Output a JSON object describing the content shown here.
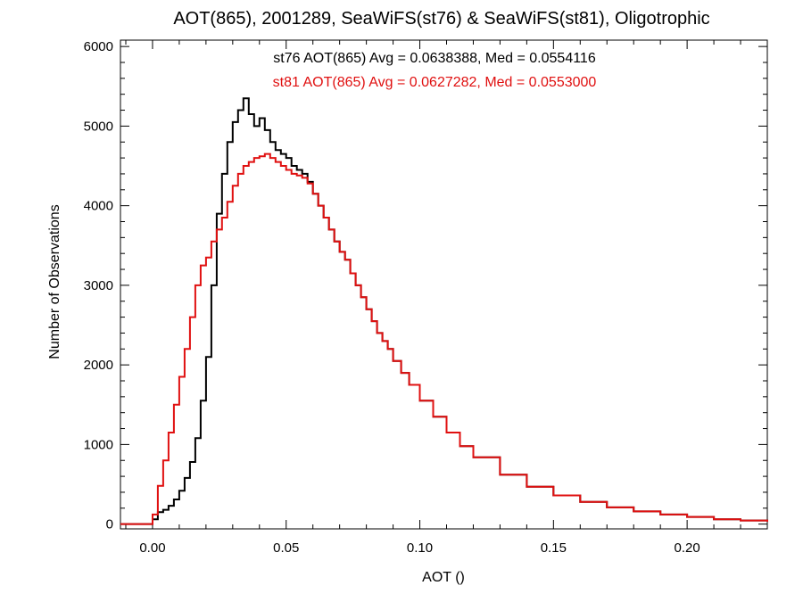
{
  "chart_data": {
    "type": "line",
    "title": "AOT(865), 2001289, SeaWiFS(st76) & SeaWiFS(st81), Oligotrophic",
    "xlabel": "AOT ()",
    "ylabel": "Number of Observations",
    "xlim": [
      -0.012,
      0.23
    ],
    "ylim": [
      -60,
      6080
    ],
    "x_ticks": [
      0.0,
      0.05,
      0.1,
      0.15,
      0.2
    ],
    "x_tick_labels": [
      "0.00",
      "0.05",
      "0.10",
      "0.15",
      "0.20"
    ],
    "y_ticks": [
      0,
      1000,
      2000,
      3000,
      4000,
      5000,
      6000
    ],
    "y_tick_labels": [
      "0",
      "1000",
      "2000",
      "3000",
      "4000",
      "5000",
      "6000"
    ],
    "x_minor_step": 0.01,
    "y_minor_step": 200,
    "grid": false,
    "legend_placement": "top-center",
    "series": [
      {
        "name": "st76",
        "legend": "st76 AOT(865) Avg = 0.0638388, Med = 0.0554116",
        "color": "#000000",
        "x": [
          -0.012,
          -0.003,
          0.0,
          0.002,
          0.004,
          0.006,
          0.008,
          0.01,
          0.012,
          0.014,
          0.016,
          0.018,
          0.02,
          0.022,
          0.024,
          0.026,
          0.028,
          0.03,
          0.032,
          0.034,
          0.036,
          0.038,
          0.04,
          0.042,
          0.044,
          0.046,
          0.048,
          0.05,
          0.052,
          0.054,
          0.056,
          0.058,
          0.06,
          0.062,
          0.064,
          0.066,
          0.068,
          0.07,
          0.072,
          0.074,
          0.076,
          0.078,
          0.08,
          0.082,
          0.084,
          0.086,
          0.088,
          0.09,
          0.093,
          0.096,
          0.1,
          0.105,
          0.11,
          0.115,
          0.12,
          0.13,
          0.14,
          0.15,
          0.16,
          0.17,
          0.18,
          0.19,
          0.2,
          0.21,
          0.22,
          0.23
        ],
        "y": [
          0,
          0,
          60,
          150,
          180,
          230,
          310,
          420,
          580,
          780,
          1080,
          1550,
          2100,
          3000,
          3900,
          4400,
          4800,
          5050,
          5200,
          5350,
          5150,
          5000,
          5100,
          4950,
          4800,
          4700,
          4650,
          4600,
          4500,
          4450,
          4400,
          4300,
          4150,
          4000,
          3850,
          3700,
          3550,
          3420,
          3320,
          3150,
          3000,
          2850,
          2700,
          2550,
          2400,
          2300,
          2200,
          2050,
          1900,
          1750,
          1550,
          1350,
          1150,
          980,
          840,
          620,
          470,
          360,
          280,
          210,
          160,
          120,
          90,
          60,
          45,
          30
        ]
      },
      {
        "name": "st81",
        "legend": "st81 AOT(865) Avg = 0.0627282, Med = 0.0553000",
        "color": "#e01010",
        "x": [
          -0.012,
          -0.003,
          0.0,
          0.002,
          0.004,
          0.006,
          0.008,
          0.01,
          0.012,
          0.014,
          0.016,
          0.018,
          0.02,
          0.022,
          0.024,
          0.026,
          0.028,
          0.03,
          0.032,
          0.034,
          0.036,
          0.038,
          0.04,
          0.042,
          0.044,
          0.046,
          0.048,
          0.05,
          0.052,
          0.054,
          0.056,
          0.058,
          0.06,
          0.062,
          0.064,
          0.066,
          0.068,
          0.07,
          0.072,
          0.074,
          0.076,
          0.078,
          0.08,
          0.082,
          0.084,
          0.086,
          0.088,
          0.09,
          0.093,
          0.096,
          0.1,
          0.105,
          0.11,
          0.115,
          0.12,
          0.13,
          0.14,
          0.15,
          0.16,
          0.17,
          0.18,
          0.19,
          0.2,
          0.21,
          0.22,
          0.23
        ],
        "y": [
          0,
          0,
          120,
          480,
          800,
          1150,
          1500,
          1850,
          2200,
          2600,
          3000,
          3250,
          3350,
          3550,
          3700,
          3850,
          4050,
          4250,
          4400,
          4500,
          4550,
          4600,
          4620,
          4650,
          4600,
          4550,
          4500,
          4450,
          4400,
          4380,
          4350,
          4280,
          4150,
          4000,
          3850,
          3700,
          3550,
          3420,
          3320,
          3150,
          3000,
          2850,
          2700,
          2550,
          2400,
          2300,
          2200,
          2050,
          1900,
          1750,
          1550,
          1350,
          1150,
          980,
          840,
          620,
          470,
          360,
          280,
          210,
          160,
          120,
          90,
          60,
          45,
          30
        ]
      }
    ]
  }
}
